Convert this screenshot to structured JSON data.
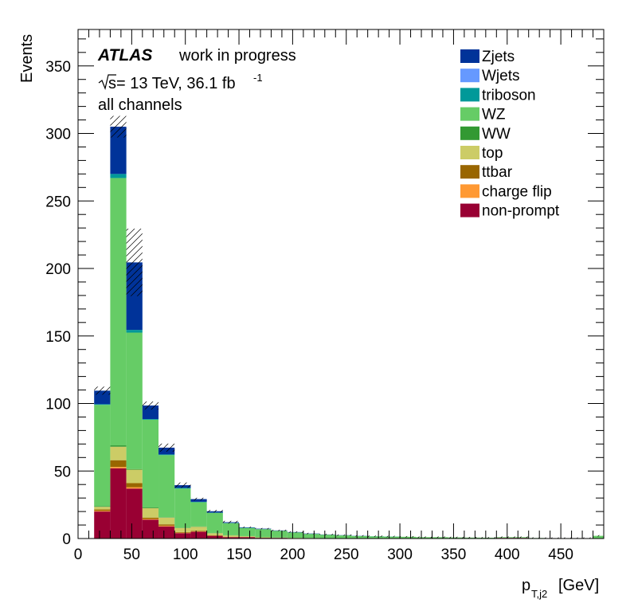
{
  "chart_data": {
    "type": "bar",
    "stacked": true,
    "xlabel": "p",
    "xlabel_sub": "T,j2",
    "xlabel_unit": "[GeV]",
    "ylabel": "Events",
    "xlim": [
      0,
      490
    ],
    "ylim": [
      0,
      377
    ],
    "x_ticks": [
      0,
      50,
      100,
      150,
      200,
      250,
      300,
      350,
      400,
      450
    ],
    "y_ticks": [
      0,
      50,
      100,
      150,
      200,
      250,
      300,
      350
    ],
    "bin_edges": [
      15,
      30,
      45,
      60,
      75,
      90,
      105,
      120,
      135,
      150,
      165,
      180,
      195,
      210,
      225,
      240,
      255,
      270,
      285,
      300,
      315,
      330,
      345,
      360,
      375,
      390,
      405,
      420,
      435,
      450,
      465,
      480,
      495
    ],
    "legend_position": "top-right",
    "annotations": {
      "experiment": "ATLAS",
      "status": "work in progress",
      "energy_pre": "s",
      "energy_post": " = 13 TeV, 36.1 fb",
      "lumi_exp": "-1",
      "channel": "all channels"
    },
    "series": [
      {
        "name": "non-prompt",
        "color": "#990033",
        "values": [
          20,
          52,
          37,
          14,
          9,
          4,
          5,
          2,
          1,
          1,
          0.5,
          0.5,
          0.3,
          0.3,
          0.2,
          0.2,
          0.1,
          0.1,
          0.1,
          0.1,
          0,
          0,
          0,
          0,
          0,
          0.5,
          0.5,
          0,
          0,
          0,
          0,
          0
        ]
      },
      {
        "name": "charge flip",
        "color": "#ff9933",
        "values": [
          0.5,
          1,
          1,
          0.5,
          0.5,
          0.3,
          0.2,
          0.1,
          0.1,
          0.1,
          0,
          0,
          0,
          0,
          0,
          0,
          0,
          0,
          0,
          0,
          0,
          0,
          0,
          0,
          0,
          0,
          0,
          0,
          0,
          0,
          0,
          0
        ]
      },
      {
        "name": "ttbar",
        "color": "#996600",
        "values": [
          1,
          5,
          3,
          1,
          1,
          0.5,
          0.5,
          0.3,
          0.2,
          0.1,
          0.1,
          0,
          0,
          0,
          0,
          0,
          0,
          0,
          0,
          0,
          0,
          0,
          0,
          0,
          0,
          0,
          0,
          0,
          0,
          0,
          0,
          0
        ]
      },
      {
        "name": "top",
        "color": "#cccc66",
        "values": [
          2,
          10,
          10,
          7,
          5,
          3,
          3,
          1.5,
          1,
          0.5,
          0.3,
          0.2,
          0.2,
          0.1,
          0.1,
          0.1,
          0,
          0,
          0,
          0,
          0,
          0,
          0,
          0,
          0,
          0,
          0,
          0,
          0,
          0,
          0,
          0
        ]
      },
      {
        "name": "WW",
        "color": "#339933",
        "values": [
          0.5,
          1,
          0.5,
          0.5,
          0.3,
          0.2,
          0.2,
          0.1,
          0.1,
          0.1,
          0,
          0,
          0,
          0,
          0,
          0,
          0,
          0,
          0,
          0,
          0,
          0,
          0,
          0,
          0,
          0,
          0,
          0,
          0,
          0,
          0,
          0
        ]
      },
      {
        "name": "WZ",
        "color": "#66cc66",
        "values": [
          75,
          198,
          101,
          65,
          46,
          29,
          18,
          15,
          9,
          6,
          6,
          5,
          4,
          3,
          2.5,
          2,
          1.7,
          1.5,
          1.3,
          1.2,
          1,
          1,
          0.8,
          0.7,
          0.6,
          0.5,
          0.5,
          0.4,
          0.3,
          0.3,
          0.3,
          2
        ]
      },
      {
        "name": "triboson",
        "color": "#009999",
        "values": [
          0.5,
          3,
          2,
          0.5,
          0.5,
          0.5,
          0.3,
          0.2,
          0.2,
          0.2,
          0.1,
          0.1,
          0.1,
          0.1,
          0.1,
          0.1,
          0.1,
          0.1,
          0.1,
          0,
          0,
          0,
          0,
          0,
          0,
          0,
          0,
          0,
          0,
          0,
          0,
          0
        ]
      },
      {
        "name": "Wjets",
        "color": "#6699ff",
        "values": [
          0,
          0,
          0,
          0,
          0,
          0,
          0,
          0,
          0,
          0,
          0,
          0,
          0,
          0,
          0,
          0,
          0,
          0,
          0,
          0,
          0,
          0,
          0,
          0,
          0,
          0,
          0,
          0,
          0,
          0,
          0,
          0
        ]
      },
      {
        "name": "Zjets",
        "color": "#003399",
        "values": [
          10,
          35,
          50,
          10,
          5,
          2,
          2,
          1,
          0.5,
          0.3,
          0.3,
          0.2,
          0.2,
          0.2,
          0.1,
          0.1,
          0.1,
          0,
          0,
          0,
          0,
          0,
          0,
          0,
          0,
          0,
          0,
          0,
          0,
          0,
          0,
          0
        ]
      }
    ],
    "uncertainty": [
      3,
      8,
      25,
      3,
      3,
      2,
      1,
      1,
      1,
      0.5,
      0.5,
      0.5,
      0.5,
      0.5,
      0.5,
      0.5,
      0.5,
      0.5,
      0.5,
      0.5,
      0.5,
      0.5,
      0.5,
      0.5,
      0.5,
      0.5,
      0.5,
      0.5,
      0.5,
      0.5,
      0.5,
      0.5
    ]
  }
}
